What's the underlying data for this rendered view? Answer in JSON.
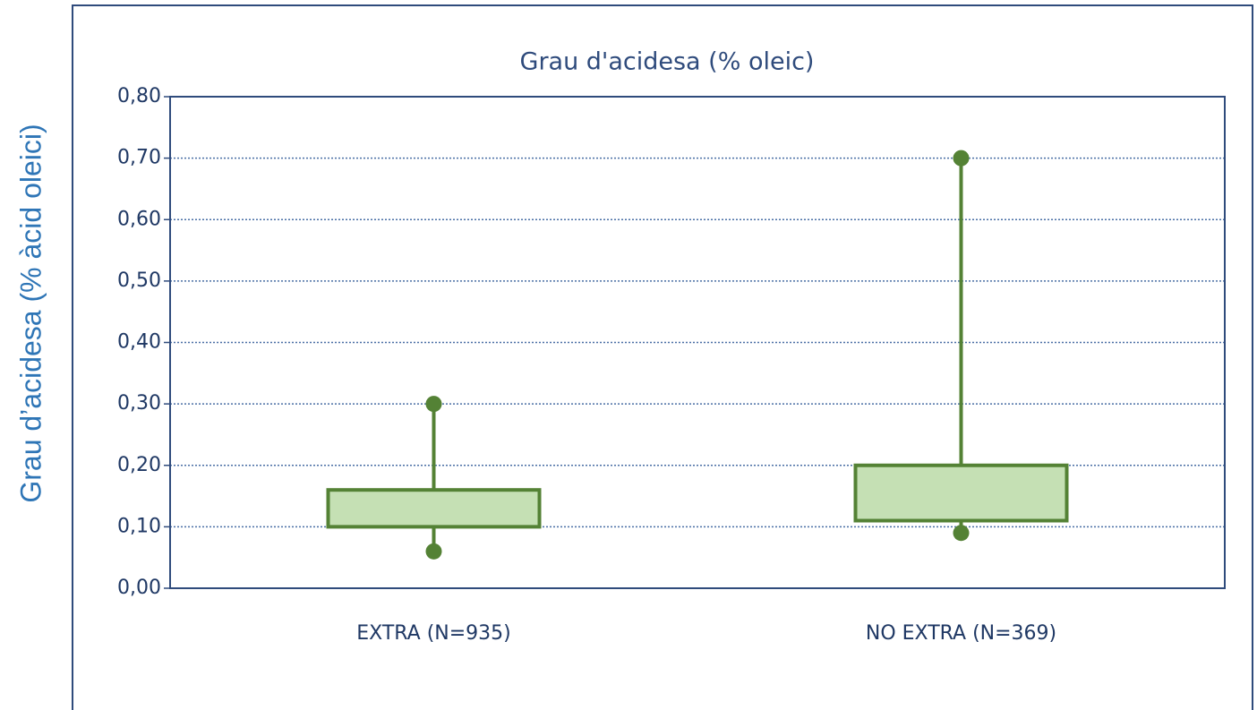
{
  "chart_data": {
    "type": "box",
    "title": "Grau d'acidesa (% oleic)",
    "y_label": "Grau d’acidesa (% àcid oleici)",
    "categories": [
      "EXTRA (N=935)",
      "NO EXTRA (N=369)"
    ],
    "min": [
      0.06,
      0.09
    ],
    "q1": [
      0.1,
      0.11
    ],
    "q3": [
      0.16,
      0.2
    ],
    "max": [
      0.3,
      0.7
    ],
    "color": "#548235",
    "fill": "#c5e0b4",
    "ylim": [
      0,
      0.8
    ],
    "yticks": [
      {
        "value": 0,
        "label": "0,00"
      },
      {
        "value": 0.1,
        "label": "0,10"
      },
      {
        "value": 0.2,
        "label": "0,20"
      },
      {
        "value": 0.3,
        "label": "0,30"
      },
      {
        "value": 0.4,
        "label": "0,40"
      },
      {
        "value": 0.5,
        "label": "0,50"
      },
      {
        "value": 0.6,
        "label": "0,60"
      },
      {
        "value": 0.7,
        "label": "0,70"
      },
      {
        "value": 0.8,
        "label": "0,80"
      }
    ],
    "grid": true
  }
}
